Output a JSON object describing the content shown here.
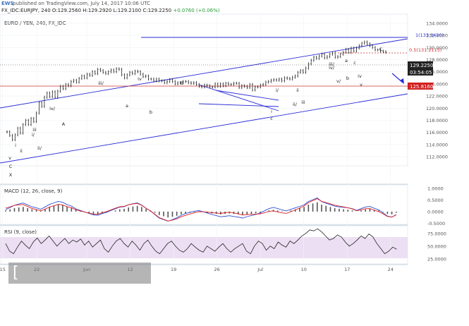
{
  "header": {
    "logo_text": "EWS",
    "published": "published on TradingView.com, July 14, 2017 10:06 UTC",
    "symbol": "FX_IDC:EURJPY, 240",
    "ohlc_open": "O:129.2560",
    "ohlc_change": "(+0.06%)",
    "ohlc_high": "H:129.2920",
    "ohlc_low": "L:129.2100",
    "ohlc_close": "C:129.2250",
    "ohlc_delta": "+0.0760"
  },
  "panels": {
    "price_label": "EURO / YEN, 240, FX_IDC",
    "macd_label": "MACD (12, 26, close, 9)",
    "rsi_label": "RSI (9, close)"
  },
  "price_badges": {
    "last": "129.2250",
    "countdown": "03:54:05",
    "support": "125.8160"
  },
  "watermark": "[ www.instaforex.com ]",
  "chart_data": [
    {
      "type": "line",
      "title": "EURO / YEN, 240, FX_IDC",
      "ylim": [
        110.5,
        135.5
      ],
      "y_ticks": [
        112,
        114,
        116,
        118,
        120,
        122,
        124,
        126,
        128,
        130,
        132,
        134
      ],
      "x_ticks": [
        "15",
        "22",
        "Jun",
        "12",
        "19",
        "26",
        "Jul",
        "10",
        "17",
        "24"
      ],
      "x_tick_idx": [
        2,
        28,
        66,
        99,
        132,
        165,
        198,
        231,
        264,
        297
      ],
      "x_range": [
        0,
        310
      ],
      "series": [
        {
          "values": [
            116.1,
            115.5,
            114.8,
            115.6,
            116.7,
            115.9,
            117.3,
            118.0,
            117.3,
            118.3,
            117.8,
            119.2,
            120.9,
            120.3,
            121.8,
            122.5,
            121.9,
            122.7,
            121.8,
            122.8,
            123.6,
            123.2,
            123.9,
            123.7,
            124.4,
            124.6,
            124.3,
            124.9,
            125.3,
            125.0,
            125.6,
            125.4,
            126.0,
            125.7,
            126.4,
            126.2,
            125.9,
            125.7,
            126.0,
            126.3,
            126.0,
            126.5,
            126.4,
            125.5,
            125.0,
            125.5,
            125.9,
            125.7,
            126.1,
            126.0,
            125.6,
            125.2,
            125.3,
            124.8,
            124.8,
            124.5,
            124.8,
            124.5,
            124.5,
            124.2,
            124.4,
            124.7,
            124.4,
            124.0,
            124.2,
            124.2,
            124.4,
            124.4,
            124.2,
            124.1,
            124.2,
            123.9,
            123.6,
            123.5,
            123.8,
            123.7,
            123.5,
            123.5,
            124.0,
            123.6,
            124.0,
            123.7,
            124.1,
            123.9,
            123.9,
            124.1,
            124.1,
            123.4,
            123.7,
            123.6,
            123.4,
            123.9,
            123.0,
            123.5,
            123.5,
            123.8,
            123.9,
            124.3,
            124.4,
            124.6,
            124.7,
            124.6,
            124.8,
            124.5,
            125.0,
            124.9,
            124.8,
            125.1,
            125.3,
            125.9,
            126.2,
            125.9,
            126.6,
            127.3,
            127.9,
            128.4,
            128.2,
            128.6,
            128.9,
            128.3,
            128.5,
            128.9,
            129.1,
            128.4,
            128.5,
            128.9,
            129.2,
            129.7,
            129.2,
            129.9,
            129.4,
            129.9,
            130.3,
            130.7,
            130.9,
            130.6,
            130.3,
            130.0,
            129.6,
            129.6,
            129.4,
            129.3,
            129.2
          ],
          "x_start": 10,
          "x_step": 1.92
        }
      ],
      "levels": {
        "support": 125.816,
        "last": 129.225
      },
      "fib_labels": [
        "1(133.3420)",
        "0.5(131.2115)"
      ],
      "wave_labels": [
        "v",
        "C",
        "X",
        "i",
        "ii",
        "ii/",
        "i/",
        "iii",
        "iii/",
        "iv/",
        "A",
        "iv",
        "a",
        "b",
        "B",
        "c",
        "i",
        "i/",
        "ii",
        "ii/",
        "iii",
        "iii/",
        "iv/",
        "v/",
        "a",
        "b",
        "c",
        "iv",
        "v",
        "C"
      ]
    },
    {
      "type": "bar",
      "title": "MACD (12, 26, close, 9)",
      "ylim": [
        -0.55,
        1.15
      ],
      "y_ticks": [
        1.0,
        0.5,
        0.0,
        -0.5
      ],
      "y_tick_labels": [
        "1.0000",
        "0.5000",
        "0.0000",
        "-0.5000"
      ],
      "series": [
        {
          "name": "",
          "values": [
            0.05,
            0.1,
            0.15,
            0.18,
            0.2,
            0.15,
            0.1,
            0.08,
            0.05,
            0.12,
            0.2,
            0.25,
            0.3,
            0.28,
            0.22,
            0.18,
            0.1,
            0.05,
            0.0,
            -0.05,
            -0.1,
            -0.12,
            -0.08,
            -0.05,
            0.0,
            0.05,
            0.1,
            0.12,
            0.18,
            0.22,
            0.25,
            0.2,
            0.12,
            0.05,
            -0.05,
            -0.15,
            -0.2,
            -0.25,
            -0.22,
            -0.18,
            -0.12,
            -0.08,
            -0.05,
            -0.02,
            0.0,
            -0.02,
            -0.05,
            -0.08,
            -0.1,
            -0.12,
            -0.1,
            -0.08,
            -0.1,
            -0.12,
            -0.15,
            -0.12,
            -0.1,
            -0.08,
            -0.05,
            0.0,
            0.05,
            0.08,
            0.05,
            0.02,
            0.0,
            0.05,
            0.1,
            0.15,
            0.2,
            0.3,
            0.35,
            0.4,
            0.3,
            0.25,
            0.2,
            0.15,
            0.12,
            0.1,
            0.08,
            0.05,
            0.0,
            0.05,
            0.1,
            0.12,
            0.08,
            0.05,
            -0.02,
            -0.1,
            -0.12,
            -0.05
          ]
        }
      ]
    },
    {
      "type": "line",
      "title": "RSI (9, close)",
      "ylim": [
        15,
        90
      ],
      "y_ticks": [
        75,
        50,
        25
      ],
      "y_tick_labels": [
        "75.0000",
        "50.0000",
        "25.0000"
      ],
      "series": [
        {
          "name": "",
          "values": [
            55,
            40,
            35,
            48,
            60,
            52,
            45,
            58,
            66,
            55,
            62,
            70,
            60,
            50,
            58,
            65,
            55,
            62,
            58,
            64,
            52,
            60,
            48,
            55,
            62,
            45,
            38,
            50,
            60,
            65,
            55,
            48,
            60,
            52,
            42,
            55,
            62,
            50,
            40,
            35,
            45,
            55,
            60,
            50,
            42,
            38,
            45,
            55,
            48,
            42,
            38,
            50,
            45,
            40,
            48,
            55,
            45,
            38,
            45,
            50,
            55,
            40,
            35,
            50,
            60,
            55,
            42,
            50,
            45,
            58,
            52,
            48,
            60,
            55,
            62,
            70,
            75,
            82,
            80,
            84,
            78,
            70,
            62,
            65,
            72,
            68,
            58,
            50,
            55,
            62,
            70,
            65,
            74,
            68,
            55,
            45,
            35,
            40,
            48,
            44
          ]
        }
      ]
    }
  ]
}
